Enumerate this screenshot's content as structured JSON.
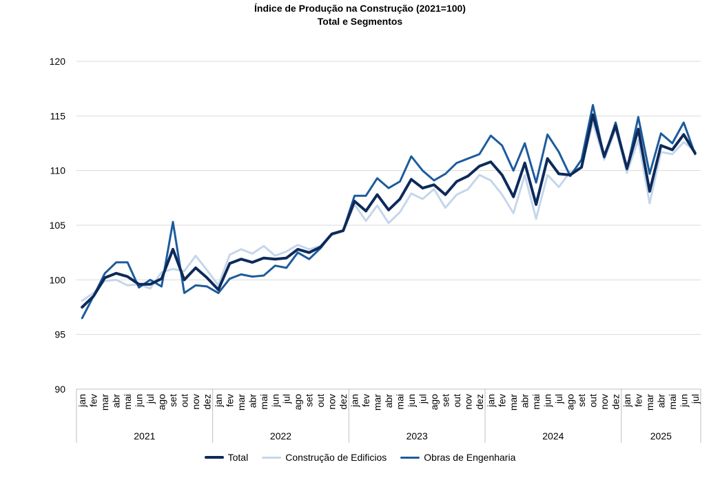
{
  "chart_data": {
    "type": "line",
    "title": "Índice de Produção na Construção (2021=100)",
    "subtitle": "Total e Segmentos",
    "xlabel": "",
    "ylabel": "",
    "ylim": [
      90,
      120
    ],
    "yticks": [
      "90",
      "95",
      "100",
      "105",
      "110",
      "115",
      "120"
    ],
    "grid": true,
    "legend_position": "bottom",
    "months": [
      "jan",
      "fev",
      "mar",
      "abr",
      "mai",
      "jun",
      "jul",
      "ago",
      "set",
      "out",
      "nov",
      "dez"
    ],
    "years": [
      "2021",
      "2022",
      "2023",
      "2024",
      "2025"
    ],
    "x": [
      "jan",
      "fev",
      "mar",
      "abr",
      "mai",
      "jun",
      "jul",
      "ago",
      "set",
      "out",
      "nov",
      "dez",
      "jan",
      "fev",
      "mar",
      "abr",
      "mai",
      "jun",
      "jul",
      "ago",
      "set",
      "out",
      "nov",
      "dez",
      "jan",
      "fev",
      "mar",
      "abr",
      "mai",
      "jun",
      "jul",
      "ago",
      "set",
      "out",
      "nov",
      "dez",
      "jan",
      "fev",
      "mar",
      "abr",
      "mai",
      "jun",
      "jul",
      "ago",
      "set",
      "out",
      "nov",
      "dez",
      "jan",
      "fev",
      "mar",
      "abr",
      "mai",
      "jun",
      "jul"
    ],
    "series": [
      {
        "name": "Total",
        "color": "#0d2a5a",
        "values": [
          97.5,
          98.5,
          100.2,
          100.6,
          100.3,
          99.6,
          99.6,
          100.1,
          102.8,
          100.0,
          101.1,
          100.2,
          99.1,
          101.5,
          101.9,
          101.6,
          102.0,
          101.9,
          102.0,
          102.8,
          102.5,
          103.0,
          104.2,
          104.5,
          107.2,
          106.3,
          107.8,
          106.4,
          107.4,
          109.2,
          108.4,
          108.7,
          107.8,
          109.0,
          109.5,
          110.4,
          110.8,
          109.6,
          107.6,
          110.7,
          106.9,
          111.1,
          109.7,
          109.6,
          110.3,
          115.1,
          111.3,
          114.1,
          110.2,
          113.8,
          108.1,
          112.3,
          111.9,
          113.3,
          111.6
        ]
      },
      {
        "name": "Construção de Edificios",
        "color": "#c5d6ea",
        "values": [
          98.1,
          98.8,
          99.9,
          100.0,
          99.5,
          99.6,
          99.2,
          100.7,
          101.0,
          100.8,
          102.2,
          100.9,
          99.5,
          102.3,
          102.8,
          102.4,
          103.1,
          102.2,
          102.6,
          103.2,
          102.8,
          103.1,
          104.1,
          104.5,
          106.9,
          105.4,
          106.8,
          105.2,
          106.2,
          107.9,
          107.4,
          108.3,
          106.6,
          107.8,
          108.3,
          109.6,
          109.1,
          107.8,
          106.1,
          109.6,
          105.6,
          109.6,
          108.5,
          109.9,
          110.3,
          114.4,
          111.0,
          113.8,
          109.8,
          112.8,
          107.0,
          111.7,
          111.5,
          112.6,
          111.8
        ]
      },
      {
        "name": "Obras de Engenharia",
        "color": "#1c5b9c",
        "values": [
          96.5,
          98.5,
          100.6,
          101.6,
          101.6,
          99.3,
          100.0,
          99.4,
          105.3,
          98.8,
          99.5,
          99.4,
          98.8,
          100.1,
          100.5,
          100.3,
          100.4,
          101.3,
          101.1,
          102.5,
          101.9,
          102.9,
          104.2,
          104.5,
          107.7,
          107.7,
          109.3,
          108.4,
          109.0,
          111.3,
          110.0,
          109.1,
          109.7,
          110.7,
          111.1,
          111.5,
          113.2,
          112.3,
          110.0,
          112.5,
          108.9,
          113.3,
          111.7,
          109.5,
          111.0,
          116.0,
          111.2,
          114.4,
          110.1,
          114.9,
          109.7,
          113.4,
          112.5,
          114.4,
          111.5
        ]
      }
    ]
  }
}
